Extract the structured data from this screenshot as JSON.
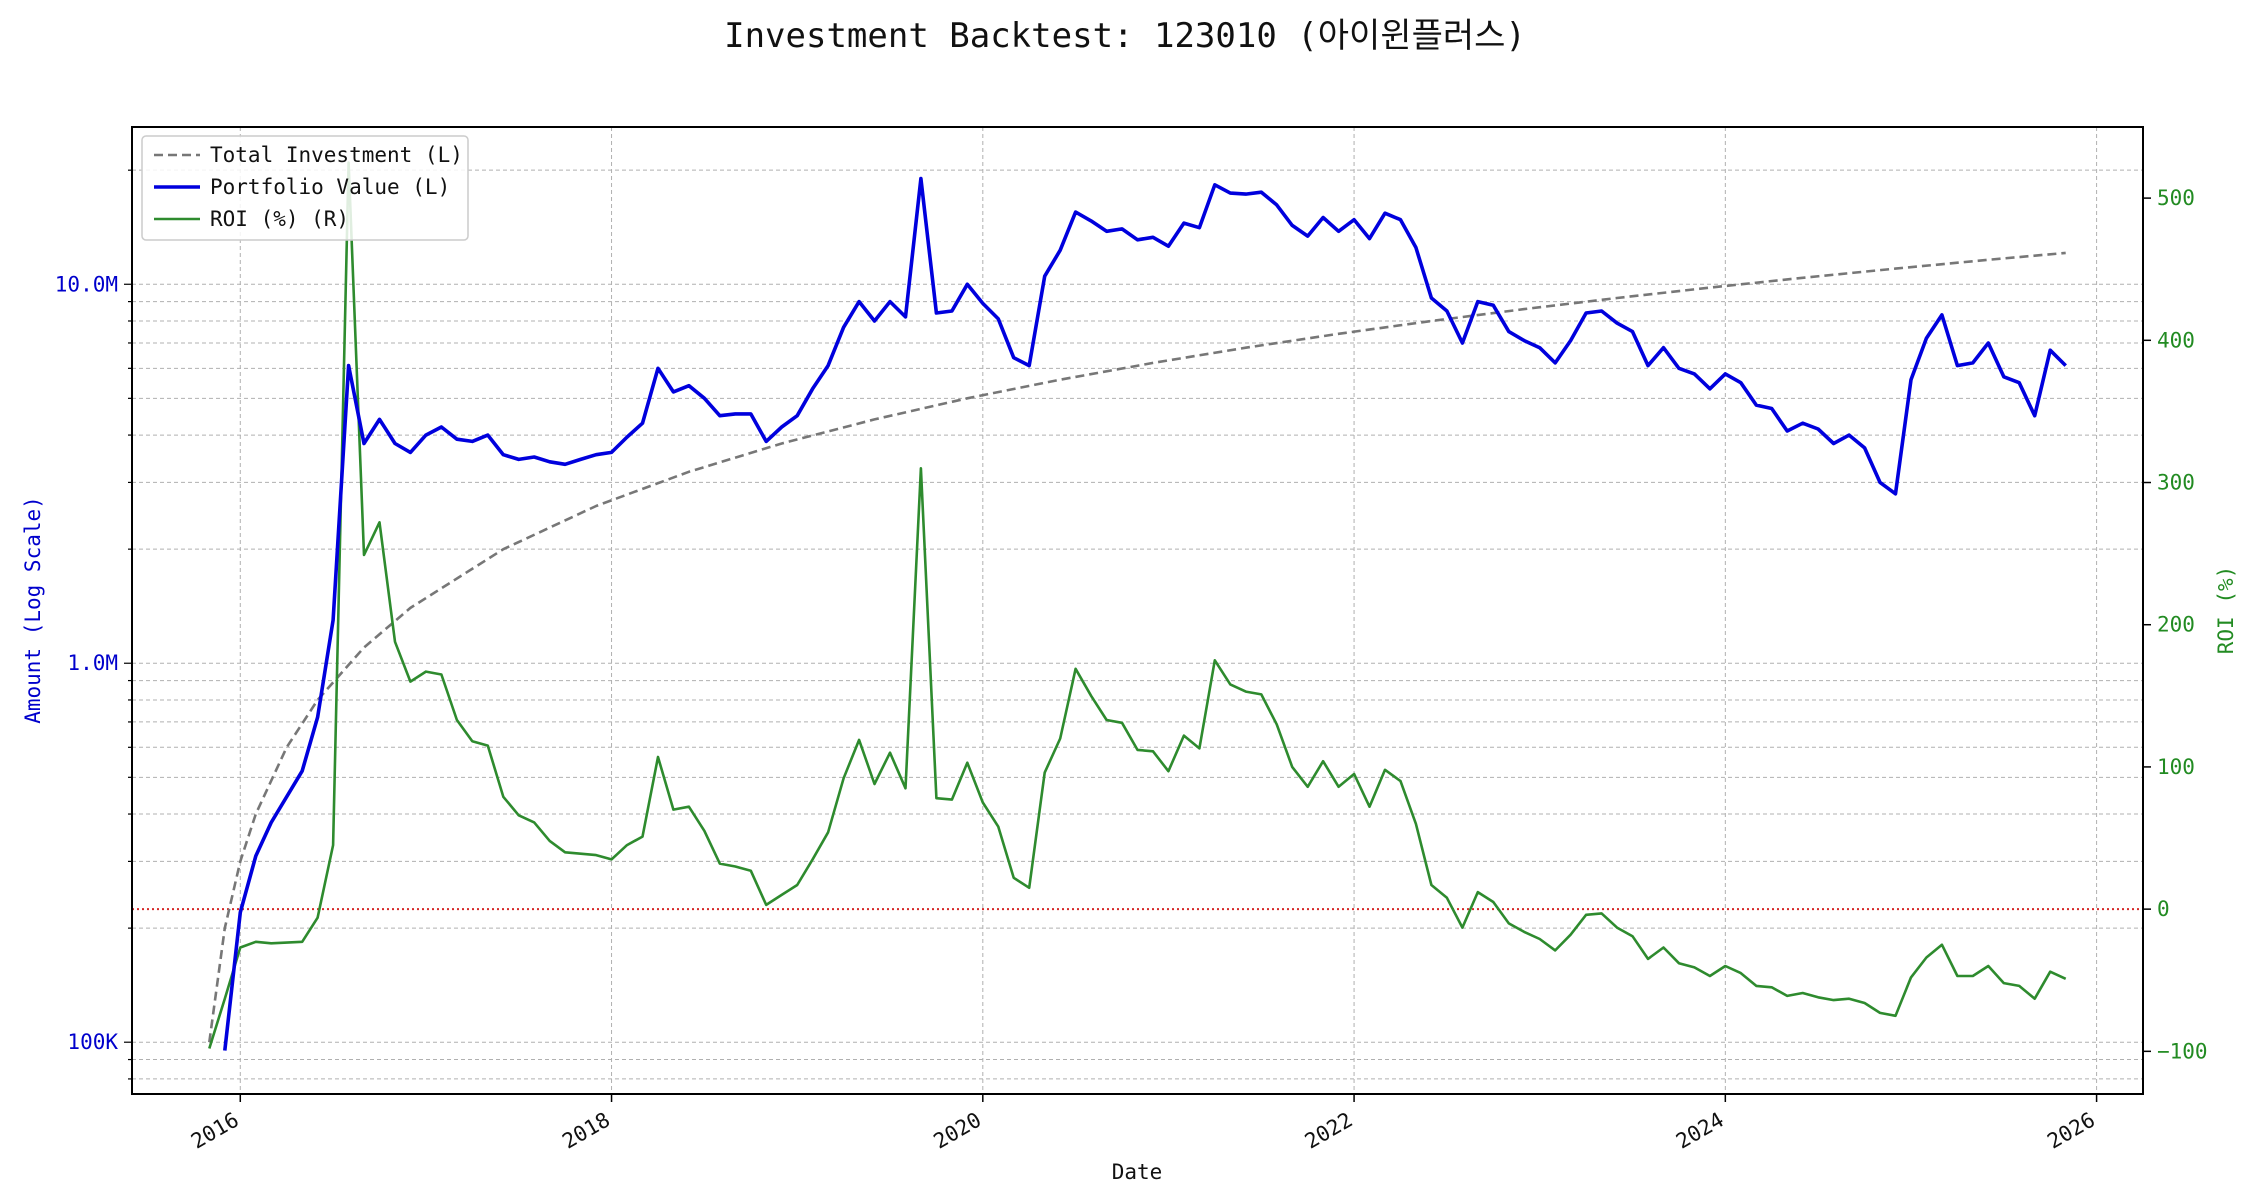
{
  "chart_data": {
    "type": "line",
    "title": "Investment Backtest: 123010 (아이윈플러스)",
    "xlabel": "Date",
    "ylabel_left": "Amount (Log Scale)",
    "ylabel_right": "ROI (%)",
    "x_range": [
      "2015-06-01",
      "2026-04-01"
    ],
    "y_left_scale": "log",
    "y_left_range": [
      73000,
      26000000
    ],
    "y_right_range": [
      -130,
      550
    ],
    "x_ticks": [
      "2016",
      "2018",
      "2020",
      "2022",
      "2024",
      "2026"
    ],
    "y_left_ticks": [
      "100K",
      "1.0M",
      "10.0M"
    ],
    "y_right_ticks": [
      "−100",
      "0",
      "100",
      "200",
      "300",
      "400",
      "500"
    ],
    "grid": true,
    "legend_position": "top-left",
    "reference_line": {
      "axis": "right",
      "value": 0,
      "color": "#d62728",
      "style": "dotted"
    },
    "series": [
      {
        "name": "Total Investment (L)",
        "axis": "left",
        "color": "#777777",
        "style": "dashed",
        "points": [
          [
            "2015-11-01",
            100000
          ],
          [
            "2015-12-01",
            200000
          ],
          [
            "2016-01-01",
            300000
          ],
          [
            "2016-02-01",
            400000
          ],
          [
            "2016-04-01",
            600000
          ],
          [
            "2016-06-01",
            800000
          ],
          [
            "2016-09-01",
            1100000
          ],
          [
            "2016-12-01",
            1400000
          ],
          [
            "2017-06-01",
            2000000
          ],
          [
            "2017-12-01",
            2600000
          ],
          [
            "2018-06-01",
            3200000
          ],
          [
            "2018-12-01",
            3800000
          ],
          [
            "2019-06-01",
            4400000
          ],
          [
            "2019-12-01",
            5000000
          ],
          [
            "2020-06-01",
            5600000
          ],
          [
            "2020-12-01",
            6200000
          ],
          [
            "2021-06-01",
            6800000
          ],
          [
            "2021-12-01",
            7400000
          ],
          [
            "2022-06-01",
            8000000
          ],
          [
            "2022-12-01",
            8600000
          ],
          [
            "2023-06-01",
            9200000
          ],
          [
            "2023-12-01",
            9800000
          ],
          [
            "2024-06-01",
            10400000
          ],
          [
            "2024-12-01",
            11000000
          ],
          [
            "2025-06-01",
            11600000
          ],
          [
            "2025-11-01",
            12100000
          ]
        ]
      },
      {
        "name": "Portfolio Value (L)",
        "axis": "left",
        "color": "#0000dd",
        "style": "solid",
        "points": [
          [
            "2015-12-01",
            95000
          ],
          [
            "2016-01-01",
            220000
          ],
          [
            "2016-02-01",
            310000
          ],
          [
            "2016-03-01",
            380000
          ],
          [
            "2016-05-01",
            520000
          ],
          [
            "2016-06-01",
            720000
          ],
          [
            "2016-07-01",
            1300000
          ],
          [
            "2016-08-01",
            6100000
          ],
          [
            "2016-09-01",
            3800000
          ],
          [
            "2016-10-01",
            4400000
          ],
          [
            "2016-11-01",
            3800000
          ],
          [
            "2016-12-01",
            3600000
          ],
          [
            "2017-01-01",
            4000000
          ],
          [
            "2017-02-01",
            4200000
          ],
          [
            "2017-03-01",
            3900000
          ],
          [
            "2017-04-01",
            3850000
          ],
          [
            "2017-05-01",
            4000000
          ],
          [
            "2017-06-01",
            3550000
          ],
          [
            "2017-07-01",
            3450000
          ],
          [
            "2017-08-01",
            3500000
          ],
          [
            "2017-09-01",
            3400000
          ],
          [
            "2017-10-01",
            3350000
          ],
          [
            "2017-11-01",
            3450000
          ],
          [
            "2017-12-01",
            3550000
          ],
          [
            "2018-01-01",
            3600000
          ],
          [
            "2018-02-01",
            3950000
          ],
          [
            "2018-03-01",
            4300000
          ],
          [
            "2018-04-01",
            6000000
          ],
          [
            "2018-05-01",
            5200000
          ],
          [
            "2018-06-01",
            5400000
          ],
          [
            "2018-07-01",
            5000000
          ],
          [
            "2018-08-01",
            4500000
          ],
          [
            "2018-09-01",
            4550000
          ],
          [
            "2018-10-01",
            4550000
          ],
          [
            "2018-11-01",
            3850000
          ],
          [
            "2018-12-01",
            4200000
          ],
          [
            "2019-01-01",
            4500000
          ],
          [
            "2019-02-01",
            5300000
          ],
          [
            "2019-03-01",
            6100000
          ],
          [
            "2019-04-01",
            7700000
          ],
          [
            "2019-05-01",
            9000000
          ],
          [
            "2019-06-01",
            8000000
          ],
          [
            "2019-07-01",
            9000000
          ],
          [
            "2019-08-01",
            8200000
          ],
          [
            "2019-09-01",
            19000000
          ],
          [
            "2019-10-01",
            8400000
          ],
          [
            "2019-11-01",
            8500000
          ],
          [
            "2019-12-01",
            10000000
          ],
          [
            "2020-01-01",
            8900000
          ],
          [
            "2020-02-01",
            8100000
          ],
          [
            "2020-03-01",
            6400000
          ],
          [
            "2020-04-01",
            6100000
          ],
          [
            "2020-05-01",
            10500000
          ],
          [
            "2020-06-01",
            12300000
          ],
          [
            "2020-07-01",
            15500000
          ],
          [
            "2020-08-01",
            14700000
          ],
          [
            "2020-09-01",
            13800000
          ],
          [
            "2020-10-01",
            14000000
          ],
          [
            "2020-11-01",
            13100000
          ],
          [
            "2020-12-01",
            13300000
          ],
          [
            "2021-01-01",
            12600000
          ],
          [
            "2021-02-01",
            14500000
          ],
          [
            "2021-03-01",
            14100000
          ],
          [
            "2021-04-01",
            18300000
          ],
          [
            "2021-05-01",
            17400000
          ],
          [
            "2021-06-01",
            17300000
          ],
          [
            "2021-07-01",
            17500000
          ],
          [
            "2021-08-01",
            16200000
          ],
          [
            "2021-09-01",
            14300000
          ],
          [
            "2021-10-01",
            13400000
          ],
          [
            "2021-11-01",
            15000000
          ],
          [
            "2021-12-01",
            13800000
          ],
          [
            "2022-01-01",
            14800000
          ],
          [
            "2022-02-01",
            13200000
          ],
          [
            "2022-03-01",
            15400000
          ],
          [
            "2022-04-01",
            14800000
          ],
          [
            "2022-05-01",
            12500000
          ],
          [
            "2022-06-01",
            9200000
          ],
          [
            "2022-07-01",
            8500000
          ],
          [
            "2022-08-01",
            7000000
          ],
          [
            "2022-09-01",
            9000000
          ],
          [
            "2022-10-01",
            8800000
          ],
          [
            "2022-11-01",
            7500000
          ],
          [
            "2022-12-01",
            7100000
          ],
          [
            "2023-01-01",
            6800000
          ],
          [
            "2023-02-01",
            6200000
          ],
          [
            "2023-03-01",
            7100000
          ],
          [
            "2023-04-01",
            8400000
          ],
          [
            "2023-05-01",
            8500000
          ],
          [
            "2023-06-01",
            7900000
          ],
          [
            "2023-07-01",
            7500000
          ],
          [
            "2023-08-01",
            6100000
          ],
          [
            "2023-09-01",
            6800000
          ],
          [
            "2023-10-01",
            6000000
          ],
          [
            "2023-11-01",
            5800000
          ],
          [
            "2023-12-01",
            5300000
          ],
          [
            "2024-01-01",
            5800000
          ],
          [
            "2024-02-01",
            5500000
          ],
          [
            "2024-03-01",
            4800000
          ],
          [
            "2024-04-01",
            4700000
          ],
          [
            "2024-05-01",
            4100000
          ],
          [
            "2024-06-01",
            4300000
          ],
          [
            "2024-07-01",
            4150000
          ],
          [
            "2024-08-01",
            3800000
          ],
          [
            "2024-09-01",
            4000000
          ],
          [
            "2024-10-01",
            3700000
          ],
          [
            "2024-11-01",
            3000000
          ],
          [
            "2024-12-01",
            2800000
          ],
          [
            "2025-01-01",
            5600000
          ],
          [
            "2025-02-01",
            7200000
          ],
          [
            "2025-03-01",
            8300000
          ],
          [
            "2025-04-01",
            6100000
          ],
          [
            "2025-05-01",
            6200000
          ],
          [
            "2025-06-01",
            7000000
          ],
          [
            "2025-07-01",
            5700000
          ],
          [
            "2025-08-01",
            5500000
          ],
          [
            "2025-09-01",
            4500000
          ],
          [
            "2025-10-01",
            6700000
          ],
          [
            "2025-11-01",
            6100000
          ]
        ]
      },
      {
        "name": "ROI (%) (R)",
        "axis": "right",
        "color": "#2e8b2e",
        "style": "solid",
        "points": [
          [
            "2015-11-01",
            -98
          ],
          [
            "2015-12-01",
            -63
          ],
          [
            "2016-01-01",
            -27
          ],
          [
            "2016-02-01",
            -23
          ],
          [
            "2016-03-01",
            -24
          ],
          [
            "2016-05-01",
            -23
          ],
          [
            "2016-06-01",
            -6
          ],
          [
            "2016-07-01",
            45
          ],
          [
            "2016-08-01",
            525
          ],
          [
            "2016-09-01",
            249
          ],
          [
            "2016-10-01",
            272
          ],
          [
            "2016-11-01",
            188
          ],
          [
            "2016-12-01",
            160
          ],
          [
            "2017-01-01",
            167
          ],
          [
            "2017-02-01",
            165
          ],
          [
            "2017-03-01",
            133
          ],
          [
            "2017-04-01",
            118
          ],
          [
            "2017-05-01",
            115
          ],
          [
            "2017-06-01",
            79
          ],
          [
            "2017-07-01",
            66
          ],
          [
            "2017-08-01",
            61
          ],
          [
            "2017-09-01",
            48
          ],
          [
            "2017-10-01",
            40
          ],
          [
            "2017-11-01",
            39
          ],
          [
            "2017-12-01",
            38
          ],
          [
            "2018-01-01",
            35
          ],
          [
            "2018-02-01",
            45
          ],
          [
            "2018-03-01",
            51
          ],
          [
            "2018-04-01",
            107
          ],
          [
            "2018-05-01",
            70
          ],
          [
            "2018-06-01",
            72
          ],
          [
            "2018-07-01",
            55
          ],
          [
            "2018-08-01",
            32
          ],
          [
            "2018-09-01",
            30
          ],
          [
            "2018-10-01",
            27
          ],
          [
            "2018-11-01",
            3
          ],
          [
            "2018-12-01",
            10
          ],
          [
            "2019-01-01",
            17
          ],
          [
            "2019-02-01",
            35
          ],
          [
            "2019-03-01",
            54
          ],
          [
            "2019-04-01",
            92
          ],
          [
            "2019-05-01",
            119
          ],
          [
            "2019-06-01",
            88
          ],
          [
            "2019-07-01",
            110
          ],
          [
            "2019-08-01",
            85
          ],
          [
            "2019-09-01",
            310
          ],
          [
            "2019-10-01",
            78
          ],
          [
            "2019-11-01",
            77
          ],
          [
            "2019-12-01",
            103
          ],
          [
            "2020-01-01",
            75
          ],
          [
            "2020-02-01",
            58
          ],
          [
            "2020-03-01",
            22
          ],
          [
            "2020-04-01",
            15
          ],
          [
            "2020-05-01",
            96
          ],
          [
            "2020-06-01",
            120
          ],
          [
            "2020-07-01",
            169
          ],
          [
            "2020-08-01",
            150
          ],
          [
            "2020-09-01",
            133
          ],
          [
            "2020-10-01",
            131
          ],
          [
            "2020-11-01",
            112
          ],
          [
            "2020-12-01",
            111
          ],
          [
            "2021-01-01",
            97
          ],
          [
            "2021-02-01",
            122
          ],
          [
            "2021-03-01",
            113
          ],
          [
            "2021-04-01",
            175
          ],
          [
            "2021-05-01",
            158
          ],
          [
            "2021-06-01",
            153
          ],
          [
            "2021-07-01",
            151
          ],
          [
            "2021-08-01",
            130
          ],
          [
            "2021-09-01",
            100
          ],
          [
            "2021-10-01",
            86
          ],
          [
            "2021-11-01",
            104
          ],
          [
            "2021-12-01",
            86
          ],
          [
            "2022-01-01",
            95
          ],
          [
            "2022-02-01",
            72
          ],
          [
            "2022-03-01",
            98
          ],
          [
            "2022-04-01",
            90
          ],
          [
            "2022-05-01",
            60
          ],
          [
            "2022-06-01",
            17
          ],
          [
            "2022-07-01",
            8
          ],
          [
            "2022-08-01",
            -13
          ],
          [
            "2022-09-01",
            12
          ],
          [
            "2022-10-01",
            5
          ],
          [
            "2022-11-01",
            -10
          ],
          [
            "2022-12-01",
            -16
          ],
          [
            "2023-01-01",
            -21
          ],
          [
            "2023-02-01",
            -29
          ],
          [
            "2023-03-01",
            -18
          ],
          [
            "2023-04-01",
            -4
          ],
          [
            "2023-05-01",
            -3
          ],
          [
            "2023-06-01",
            -13
          ],
          [
            "2023-07-01",
            -19
          ],
          [
            "2023-08-01",
            -35
          ],
          [
            "2023-09-01",
            -27
          ],
          [
            "2023-10-01",
            -38
          ],
          [
            "2023-11-01",
            -41
          ],
          [
            "2023-12-01",
            -47
          ],
          [
            "2024-01-01",
            -40
          ],
          [
            "2024-02-01",
            -45
          ],
          [
            "2024-03-01",
            -54
          ],
          [
            "2024-04-01",
            -55
          ],
          [
            "2024-05-01",
            -61
          ],
          [
            "2024-06-01",
            -59
          ],
          [
            "2024-07-01",
            -62
          ],
          [
            "2024-08-01",
            -64
          ],
          [
            "2024-09-01",
            -63
          ],
          [
            "2024-10-01",
            -66
          ],
          [
            "2024-11-01",
            -73
          ],
          [
            "2024-12-01",
            -75
          ],
          [
            "2025-01-01",
            -48
          ],
          [
            "2025-02-01",
            -34
          ],
          [
            "2025-03-01",
            -25
          ],
          [
            "2025-04-01",
            -47
          ],
          [
            "2025-05-01",
            -47
          ],
          [
            "2025-06-01",
            -40
          ],
          [
            "2025-07-01",
            -52
          ],
          [
            "2025-08-01",
            -54
          ],
          [
            "2025-09-01",
            -63
          ],
          [
            "2025-10-01",
            -44
          ],
          [
            "2025-11-01",
            -49
          ]
        ]
      }
    ]
  },
  "colors": {
    "left_axis": "#0000cc",
    "right_axis": "#228b22",
    "grid": "#b0b0b0",
    "zero_line": "#d62728"
  }
}
